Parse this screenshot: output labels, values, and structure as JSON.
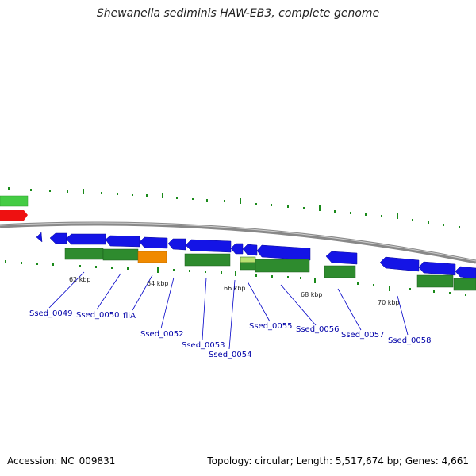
{
  "title": "Shewanella sediminis HAW-EB3, complete genome",
  "footer": {
    "accession_label": "Accession:",
    "accession": "NC_009831",
    "topology_label": "Topology:",
    "topology": "circular",
    "length_label": "Length:",
    "length": "5,517,674 bp",
    "genes_label": "Genes:",
    "genes": "4,661"
  },
  "colors": {
    "backbone": "#888888",
    "forward_gene": "#1010e0",
    "reverse_gene": "#2e8b2e",
    "highlight_gene": "#f08a00",
    "light_gene": "#b8e070",
    "partial_gene": "#ee1111",
    "partial_light": "#44cc44",
    "tick": "#1a8a1a",
    "label": "#0000a8"
  },
  "kbp_ticks": [
    "62 kbp",
    "64 kbp",
    "66 kbp",
    "68 kbp",
    "70 kbp"
  ],
  "gene_labels": [
    "Ssed_0049",
    "Ssed_0050",
    "fliA",
    "Ssed_0052",
    "Ssed_0053",
    "Ssed_0054",
    "Ssed_0055",
    "Ssed_0056",
    "Ssed_0057",
    "Ssed_0058"
  ]
}
